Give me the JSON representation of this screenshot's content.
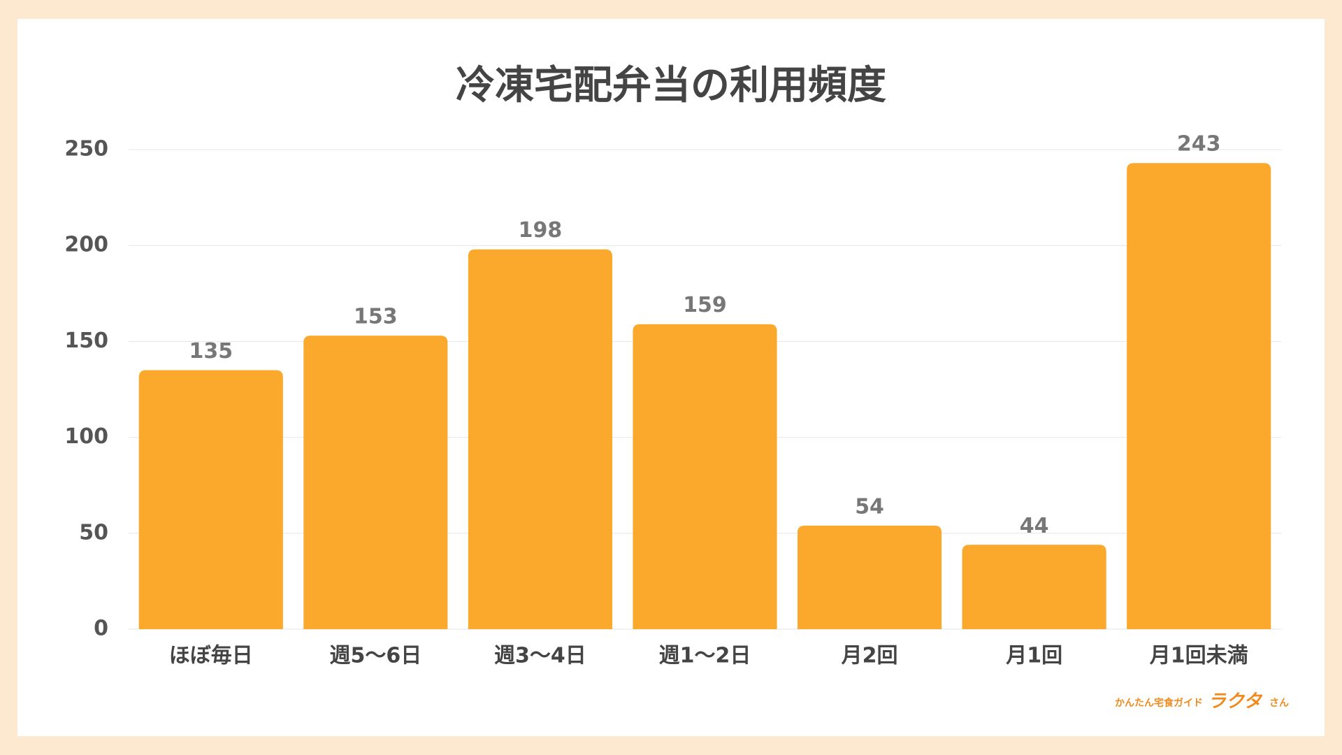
{
  "chart_data": {
    "type": "bar",
    "title": "冷凍宅配弁当の利用頻度",
    "categories": [
      "ほぼ毎日",
      "週5〜6日",
      "週3〜4日",
      "週1〜2日",
      "月2回",
      "月1回",
      "月1回未満"
    ],
    "values": [
      135,
      153,
      198,
      159,
      54,
      44,
      243
    ],
    "color": "#fba92c",
    "ylim": [
      0,
      250
    ],
    "yticks": [
      0,
      50,
      100,
      150,
      200,
      250
    ],
    "grid": true
  },
  "logo": {
    "tagline": "かんたん宅食ガイド",
    "name": "ラクタ",
    "suffix": "さん"
  }
}
